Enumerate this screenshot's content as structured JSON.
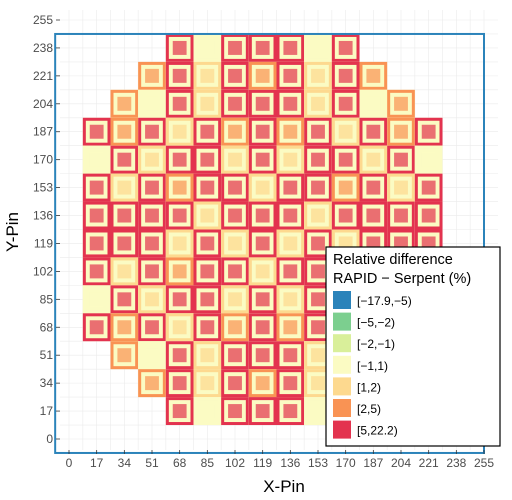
{
  "chart_data": {
    "type": "heatmap",
    "xlabel": "X-Pin",
    "ylabel": "Y-Pin",
    "xlim": [
      0,
      255
    ],
    "ylim": [
      0,
      255
    ],
    "grid": true,
    "legend_placement": "bottom-right",
    "x_ticks": [
      "0",
      "17",
      "34",
      "51",
      "68",
      "85",
      "102",
      "119",
      "136",
      "153",
      "170",
      "187",
      "204",
      "221",
      "238",
      "255"
    ],
    "y_ticks": [
      "0",
      "17",
      "34",
      "51",
      "68",
      "85",
      "102",
      "119",
      "136",
      "153",
      "170",
      "187",
      "204",
      "221",
      "238",
      "255"
    ],
    "legend": {
      "title_lines": [
        "Relative difference",
        "RAPID − Serpent (%)"
      ],
      "entries": [
        {
          "label": "[−17.9,−5)",
          "color": "#2b83ba"
        },
        {
          "label": "[−5,−2)",
          "color": "#7ccf8f"
        },
        {
          "label": "[−2,−1)",
          "color": "#d9ef9a"
        },
        {
          "label": "[−1,1)",
          "color": "#fbfbc3"
        },
        {
          "label": "[1,2)",
          "color": "#fdd98f"
        },
        {
          "label": "[2,5)",
          "color": "#f99354"
        },
        {
          "label": "[5,22.2)",
          "color": "#e3334f"
        }
      ]
    },
    "assembly_grid": {
      "assembly_pins": 17,
      "rows_top_to_bottom": [
        "...........rr.....",
        "......rrrrrrrrr...",
        "....rrrrrrrrrrrr..",
        "...rrrrrrrrrrrrrr.",
        "..rrrrrrrrrrrrrrrr",
        "..rrrrrrrrrrrrrrrr",
        "..rrrrrrrrrrrrrrrr",
        "..rrrrrrrrrrrrrrrr",
        "..rrrrrrrrrrrrrrrr",
        "..rrrrrrrrrrrrrrrr",
        "...rrrrrrrrrrrrrr.",
        "....rrrrrrrrrrrr..",
        "......rrrrrrrrr...",
        "..........rr......"
      ],
      "reflector_color": "#7ccf8f",
      "baffle_color": "#2b83ba",
      "fuel_interior_color": "#fbfbc3"
    },
    "assembly_map": {
      "x_assemblies": [
        0,
        1,
        2,
        3,
        4,
        5,
        6,
        7,
        8,
        9,
        10,
        11,
        12,
        13,
        14
      ],
      "y_assemblies": [
        0,
        1,
        2,
        3,
        4,
        5,
        6,
        7,
        8,
        9,
        10,
        11,
        12,
        13,
        14
      ],
      "core_rows": [
        {
          "y": 14,
          "x_from": 4,
          "x_to": 10,
          "values": [
            5,
            0.5,
            5,
            5,
            5,
            0.5,
            5
          ]
        },
        {
          "y": 13,
          "x_from": 3,
          "x_to": 11,
          "values": [
            3,
            5,
            1.5,
            5,
            3,
            5,
            1.5,
            5,
            3
          ]
        },
        {
          "y": 12,
          "x_from": 2,
          "x_to": 12,
          "values": [
            3,
            0.5,
            5,
            1.5,
            5,
            5,
            5,
            1.5,
            5,
            0.5,
            3
          ]
        },
        {
          "y": 11,
          "x_from": 1,
          "x_to": 13,
          "values": [
            5,
            3,
            5,
            1.5,
            5,
            3,
            5,
            3,
            5,
            1.5,
            5,
            3,
            5
          ]
        },
        {
          "y": 10,
          "x_from": 1,
          "x_to": 13,
          "values": [
            0.5,
            5,
            1.5,
            5,
            5,
            1.5,
            5,
            1.5,
            5,
            5,
            1.5,
            5,
            0.5
          ]
        },
        {
          "y": 9,
          "x_from": 1,
          "x_to": 13,
          "values": [
            5,
            1.5,
            5,
            3,
            5,
            5,
            1.5,
            5,
            5,
            3,
            5,
            1.5,
            5
          ]
        },
        {
          "y": 8,
          "x_from": 1,
          "x_to": 13,
          "values": [
            5,
            5,
            5,
            5,
            1.5,
            5,
            5,
            5,
            1.5,
            5,
            5,
            5,
            5
          ]
        },
        {
          "y": 7,
          "x_from": 1,
          "x_to": 13,
          "values": [
            5,
            5,
            5,
            1.5,
            5,
            1.5,
            5,
            1.5,
            5,
            1.5,
            5,
            5,
            5
          ]
        },
        {
          "y": 6,
          "x_from": 1,
          "x_to": 13,
          "values": [
            5,
            1.5,
            5,
            3,
            5,
            5,
            1.5,
            5,
            5,
            3,
            5,
            1.5,
            5
          ]
        },
        {
          "y": 5,
          "x_from": 1,
          "x_to": 13,
          "values": [
            0.5,
            5,
            1.5,
            5,
            5,
            1.5,
            5,
            1.5,
            5,
            5,
            1.5,
            5,
            0.5
          ]
        },
        {
          "y": 4,
          "x_from": 1,
          "x_to": 13,
          "values": [
            5,
            3,
            5,
            1.5,
            5,
            3,
            5,
            3,
            5,
            1.5,
            5,
            3,
            5
          ]
        },
        {
          "y": 3,
          "x_from": 2,
          "x_to": 12,
          "values": [
            3,
            0.5,
            5,
            1.5,
            5,
            5,
            5,
            1.5,
            5,
            0.5,
            3
          ]
        },
        {
          "y": 2,
          "x_from": 3,
          "x_to": 11,
          "values": [
            3,
            5,
            1.5,
            5,
            3,
            5,
            1.5,
            5,
            3
          ]
        },
        {
          "y": 1,
          "x_from": 4,
          "x_to": 10,
          "values": [
            5,
            0.5,
            5,
            5,
            5,
            0.5,
            5
          ]
        }
      ]
    }
  }
}
